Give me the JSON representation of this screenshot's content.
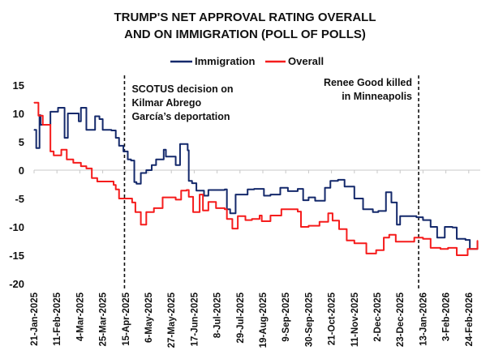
{
  "chart_data": {
    "type": "line",
    "title": [
      "TRUMP'S NET APPROVAL RATING OVERALL",
      "AND ON IMMIGRATION (POLL OF POLLS)"
    ],
    "xlabel": "",
    "ylabel": "",
    "x_unit": "days since 21-Jan-2025",
    "ylim": [
      -20,
      15
    ],
    "yticks": [
      15,
      10,
      5,
      0,
      -5,
      -10,
      -15,
      -20
    ],
    "xtick_labels": [
      "21-Jan-2025",
      "11-Feb-2025",
      "4-Mar-2025",
      "25-Mar-2025",
      "15-Apr-2025",
      "6-May-2025",
      "27-May-2025",
      "17-Jun-2025",
      "8-Jul-2025",
      "29-Jul-2025",
      "19-Aug-2025",
      "9-Sep-2025",
      "30-Sep-2025",
      "21-Oct-2025",
      "11-Nov-2025",
      "2-Dec-2025",
      "23-Dec-2025",
      "13-Jan-2026",
      "3-Feb-2026",
      "24-Feb-2026"
    ],
    "xtick_interval_days": 21,
    "legend_position": "top-center",
    "grid": false,
    "series": [
      {
        "name": "Immigration",
        "color": "#14296b",
        "points": [
          [
            0,
            7.1
          ],
          [
            2,
            3.9
          ],
          [
            5,
            9.7
          ],
          [
            6,
            8
          ],
          [
            14,
            8
          ],
          [
            15,
            10.3
          ],
          [
            22,
            11
          ],
          [
            26,
            11
          ],
          [
            28,
            5.7
          ],
          [
            31,
            10
          ],
          [
            41,
            8.6
          ],
          [
            43,
            11
          ],
          [
            47,
            11
          ],
          [
            48,
            7.1
          ],
          [
            56,
            9.5
          ],
          [
            60,
            9
          ],
          [
            63,
            7.1
          ],
          [
            71,
            7
          ],
          [
            75,
            5.7
          ],
          [
            78,
            4.3
          ],
          [
            82,
            3.3
          ],
          [
            86,
            1.9
          ],
          [
            89,
            1.7
          ],
          [
            92,
            -2.1
          ],
          [
            94,
            -2.4
          ],
          [
            98,
            -0.5
          ],
          [
            103,
            0
          ],
          [
            108,
            0.9
          ],
          [
            112,
            1.9
          ],
          [
            115,
            1.9
          ],
          [
            119,
            3.6
          ],
          [
            121,
            2.4
          ],
          [
            127,
            2.4
          ],
          [
            130,
            0.9
          ],
          [
            134,
            4.6
          ],
          [
            139,
            4.6
          ],
          [
            141,
            3.5
          ],
          [
            142,
            -1.9
          ],
          [
            145,
            -2.3
          ],
          [
            149,
            -3.6
          ],
          [
            156,
            -4.5
          ],
          [
            160,
            -3.5
          ],
          [
            175,
            -3.4
          ],
          [
            177,
            -6.9
          ],
          [
            180,
            -7.6
          ],
          [
            185,
            -4.3
          ],
          [
            192,
            -4.3
          ],
          [
            196,
            -3.4
          ],
          [
            202,
            -3.3
          ],
          [
            211,
            -4.5
          ],
          [
            217,
            -4.3
          ],
          [
            226,
            -3.1
          ],
          [
            233,
            -3.7
          ],
          [
            242,
            -3.3
          ],
          [
            247,
            -5.3
          ],
          [
            252,
            -4.8
          ],
          [
            258,
            -5.4
          ],
          [
            267,
            -3.1
          ],
          [
            272,
            -1.9
          ],
          [
            279,
            -1.7
          ],
          [
            285,
            -2.9
          ],
          [
            294,
            -5
          ],
          [
            302,
            -6.9
          ],
          [
            311,
            -7.4
          ],
          [
            316,
            -7.2
          ],
          [
            323,
            -3.9
          ],
          [
            328,
            -5.7
          ],
          [
            331,
            -5.7
          ],
          [
            333,
            -9.6
          ],
          [
            336,
            -8.1
          ],
          [
            351,
            -8.3
          ],
          [
            357,
            -8.8
          ],
          [
            364,
            -10
          ],
          [
            370,
            -11.9
          ],
          [
            377,
            -10
          ],
          [
            384,
            -10.1
          ],
          [
            388,
            -12.1
          ],
          [
            396,
            -12.3
          ],
          [
            400,
            -13.9
          ],
          [
            407,
            -12.6
          ]
        ]
      },
      {
        "name": "Overall",
        "color": "#f51c1c",
        "points": [
          [
            0,
            11.9
          ],
          [
            4,
            9.6
          ],
          [
            8,
            8
          ],
          [
            15,
            3.3
          ],
          [
            18,
            2.6
          ],
          [
            22,
            2.6
          ],
          [
            25,
            3.6
          ],
          [
            30,
            1.9
          ],
          [
            36,
            1.3
          ],
          [
            43,
            0.7
          ],
          [
            48,
            0.3
          ],
          [
            53,
            -1.4
          ],
          [
            58,
            -2
          ],
          [
            66,
            -2
          ],
          [
            73,
            -2.6
          ],
          [
            75,
            -3.4
          ],
          [
            78,
            -5
          ],
          [
            86,
            -5
          ],
          [
            90,
            -5.7
          ],
          [
            93,
            -7.4
          ],
          [
            98,
            -9.6
          ],
          [
            103,
            -7.4
          ],
          [
            110,
            -6.7
          ],
          [
            118,
            -4.8
          ],
          [
            123,
            -4.8
          ],
          [
            130,
            -5.2
          ],
          [
            135,
            -3.6
          ],
          [
            140,
            -3.5
          ],
          [
            142,
            -4.7
          ],
          [
            146,
            -7.4
          ],
          [
            152,
            -4.3
          ],
          [
            155,
            -7.1
          ],
          [
            160,
            -5.6
          ],
          [
            167,
            -6.7
          ],
          [
            175,
            -6.9
          ],
          [
            177,
            -8.6
          ],
          [
            182,
            -10.3
          ],
          [
            187,
            -8.1
          ],
          [
            194,
            -8.8
          ],
          [
            200,
            -8.6
          ],
          [
            207,
            -8
          ],
          [
            209,
            -9
          ],
          [
            217,
            -8
          ],
          [
            227,
            -6.9
          ],
          [
            242,
            -7.3
          ],
          [
            245,
            -10
          ],
          [
            252,
            -9.8
          ],
          [
            262,
            -9.1
          ],
          [
            270,
            -7.6
          ],
          [
            274,
            -8.9
          ],
          [
            280,
            -10.4
          ],
          [
            287,
            -12.4
          ],
          [
            294,
            -12.9
          ],
          [
            305,
            -14.7
          ],
          [
            314,
            -14.1
          ],
          [
            321,
            -11.9
          ],
          [
            326,
            -11.4
          ],
          [
            332,
            -12.6
          ],
          [
            343,
            -12.6
          ],
          [
            349,
            -11.9
          ],
          [
            357,
            -12.1
          ],
          [
            364,
            -13.7
          ],
          [
            373,
            -13.9
          ],
          [
            380,
            -13.7
          ],
          [
            388,
            -15
          ],
          [
            398,
            -13.9
          ],
          [
            407,
            -12.4
          ]
        ]
      }
    ],
    "annotations": [
      {
        "day": 83,
        "lines": [
          "SCOTUS decision on",
          "Kilmar Abrego",
          "García’s deportation"
        ],
        "align": "right-of-line"
      },
      {
        "day": 353,
        "lines": [
          "Renee Good killed",
          "in Minneapolis"
        ],
        "align": "left-of-line"
      }
    ]
  }
}
